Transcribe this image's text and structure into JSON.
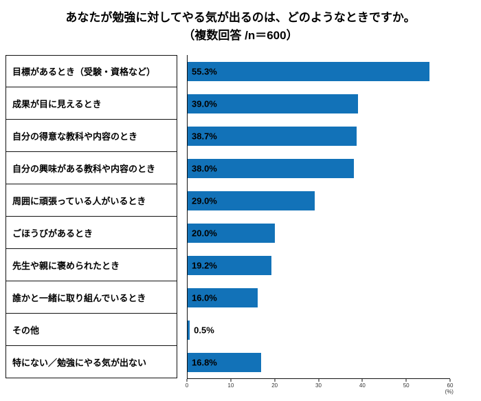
{
  "title": {
    "line1": "あなたが勉強に対してやる気が出るのは、どのようなときですか。",
    "line2": "（複数回答 /n＝600）"
  },
  "chart_data": {
    "type": "bar",
    "orientation": "horizontal",
    "title": "あなたが勉強に対してやる気が出るのは、どのようなときですか。（複数回答 /n＝600）",
    "categories": [
      "目標があるとき（受験・資格など）",
      "成果が目に見えるとき",
      "自分の得意な教科や内容のとき",
      "自分の興味がある教科や内容のとき",
      "周囲に頑張っている人がいるとき",
      "ごほうびがあるとき",
      "先生や親に褒められたとき",
      "誰かと一緒に取り組んでいるとき",
      "その他",
      "特にない／勉強にやる気が出ない"
    ],
    "values": [
      55.3,
      39.0,
      38.7,
      38.0,
      29.0,
      20.0,
      19.2,
      16.0,
      0.5,
      16.8
    ],
    "value_labels": [
      "55.3%",
      "39.0%",
      "38.7%",
      "38.0%",
      "29.0%",
      "20.0%",
      "19.2%",
      "16.0%",
      "0.5%",
      "16.8%"
    ],
    "xlim": [
      0,
      60
    ],
    "x_ticks": [
      "0",
      "10",
      "20",
      "30",
      "40",
      "50",
      "60"
    ],
    "x_unit": "(%)",
    "bar_color": "#1272b8",
    "grid": "off",
    "legend": "none"
  }
}
